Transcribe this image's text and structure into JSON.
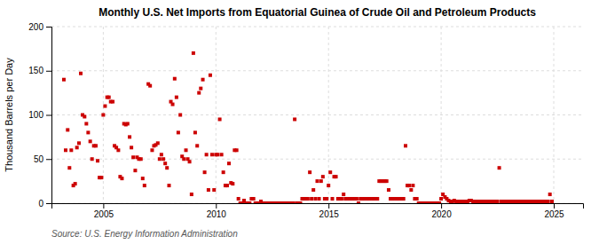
{
  "chart_data": {
    "type": "scatter",
    "title": "Monthly U.S. Net Imports from Equatorial Guinea of Crude Oil and Petroleum Products",
    "y_label": "Thousand Barrels per Day",
    "annotations": [
      "Source: U.S. Energy Information Administration"
    ],
    "color": "#cc0000",
    "marker": "square",
    "grid": true,
    "xlim": [
      2002.7,
      2026.3
    ],
    "xticks": [
      2005,
      2010,
      2015,
      2020,
      2025
    ],
    "ylim": [
      0,
      200
    ],
    "yticks": [
      0,
      50,
      100,
      150,
      200
    ],
    "x": [
      2003.25,
      2003.33,
      2003.42,
      2003.5,
      2003.58,
      2003.67,
      2003.75,
      2003.83,
      2003.92,
      2004.0,
      2004.08,
      2004.17,
      2004.25,
      2004.33,
      2004.42,
      2004.5,
      2004.58,
      2004.67,
      2004.75,
      2004.83,
      2004.92,
      2005.0,
      2005.08,
      2005.17,
      2005.25,
      2005.33,
      2005.42,
      2005.5,
      2005.58,
      2005.67,
      2005.75,
      2005.83,
      2005.92,
      2006.0,
      2006.08,
      2006.17,
      2006.25,
      2006.33,
      2006.42,
      2006.5,
      2006.58,
      2006.67,
      2006.75,
      2006.83,
      2007.0,
      2007.08,
      2007.17,
      2007.25,
      2007.33,
      2007.42,
      2007.5,
      2007.58,
      2007.67,
      2007.75,
      2007.83,
      2007.92,
      2008.0,
      2008.08,
      2008.17,
      2008.25,
      2008.33,
      2008.42,
      2008.5,
      2008.58,
      2008.67,
      2008.75,
      2008.83,
      2008.92,
      2009.0,
      2009.08,
      2009.17,
      2009.25,
      2009.33,
      2009.42,
      2009.5,
      2009.58,
      2009.67,
      2009.75,
      2009.83,
      2009.92,
      2010.0,
      2010.08,
      2010.17,
      2010.25,
      2010.33,
      2010.42,
      2010.5,
      2010.58,
      2010.67,
      2010.75,
      2010.83,
      2010.92,
      2011.0,
      2011.08,
      2011.17,
      2011.25,
      2011.33,
      2011.42,
      2011.5,
      2011.58,
      2011.67,
      2011.75,
      2011.83,
      2011.92,
      2012.0,
      2012.08,
      2012.17,
      2012.25,
      2012.33,
      2012.42,
      2012.5,
      2012.58,
      2012.67,
      2012.75,
      2012.83,
      2012.92,
      2013.0,
      2013.08,
      2013.17,
      2013.25,
      2013.33,
      2013.42,
      2013.5,
      2013.58,
      2013.67,
      2013.75,
      2013.83,
      2013.92,
      2014.0,
      2014.08,
      2014.17,
      2014.25,
      2014.33,
      2014.42,
      2014.5,
      2014.58,
      2014.67,
      2014.75,
      2014.83,
      2014.92,
      2015.0,
      2015.08,
      2015.17,
      2015.25,
      2015.33,
      2015.42,
      2015.5,
      2015.58,
      2015.67,
      2015.75,
      2015.83,
      2015.92,
      2016.0,
      2016.08,
      2016.17,
      2016.25,
      2016.33,
      2016.42,
      2016.5,
      2016.58,
      2016.67,
      2016.75,
      2016.83,
      2016.92,
      2017.0,
      2017.08,
      2017.17,
      2017.25,
      2017.33,
      2017.42,
      2017.5,
      2017.58,
      2017.67,
      2017.75,
      2017.83,
      2017.92,
      2018.0,
      2018.08,
      2018.17,
      2018.25,
      2018.33,
      2018.42,
      2018.5,
      2018.58,
      2018.67,
      2018.75,
      2018.83,
      2018.92,
      2019.0,
      2019.08,
      2019.17,
      2019.25,
      2019.33,
      2019.42,
      2019.5,
      2019.58,
      2019.67,
      2019.75,
      2019.83,
      2019.92,
      2020.0,
      2020.08,
      2020.17,
      2020.25,
      2020.33,
      2020.42,
      2020.5,
      2020.58,
      2020.67,
      2020.75,
      2020.83,
      2020.92,
      2021.0,
      2021.08,
      2021.17,
      2021.25,
      2021.33,
      2021.42,
      2021.5,
      2021.58,
      2021.67,
      2021.75,
      2021.83,
      2021.92,
      2022.0,
      2022.08,
      2022.17,
      2022.25,
      2022.33,
      2022.42,
      2022.5,
      2022.58,
      2022.67,
      2022.75,
      2022.83,
      2022.92,
      2023.0,
      2023.08,
      2023.17,
      2023.25,
      2023.33,
      2023.42,
      2023.5,
      2023.58,
      2023.67,
      2023.75,
      2023.83,
      2023.92,
      2024.0,
      2024.08,
      2024.17,
      2024.25,
      2024.33,
      2024.42,
      2024.5,
      2024.58,
      2024.67,
      2024.75,
      2024.83,
      2024.92
    ],
    "values": [
      140,
      60,
      83,
      40,
      60,
      20,
      22,
      63,
      68,
      147,
      100,
      98,
      90,
      80,
      70,
      50,
      65,
      65,
      48,
      29,
      29,
      100,
      110,
      120,
      120,
      115,
      115,
      65,
      63,
      60,
      30,
      28,
      90,
      89,
      90,
      75,
      63,
      52,
      37,
      52,
      50,
      50,
      28,
      20,
      135,
      133,
      60,
      65,
      66,
      68,
      50,
      55,
      50,
      45,
      40,
      20,
      115,
      112,
      141,
      120,
      80,
      100,
      53,
      50,
      60,
      50,
      47,
      10,
      170,
      80,
      65,
      125,
      130,
      140,
      35,
      55,
      15,
      145,
      55,
      15,
      55,
      55,
      95,
      55,
      35,
      20,
      20,
      45,
      23,
      22,
      60,
      60,
      5,
      0,
      0,
      3,
      0,
      0,
      0,
      5,
      5,
      0,
      0,
      0,
      2,
      0,
      0,
      0,
      0,
      0,
      0,
      0,
      0,
      0,
      0,
      0,
      0,
      0,
      0,
      0,
      0,
      0,
      95,
      0,
      0,
      0,
      5,
      5,
      5,
      5,
      35,
      5,
      15,
      5,
      25,
      5,
      25,
      30,
      5,
      5,
      20,
      35,
      5,
      30,
      30,
      5,
      5,
      5,
      10,
      5,
      5,
      5,
      5,
      5,
      5,
      5,
      0,
      5,
      5,
      5,
      5,
      5,
      5,
      5,
      5,
      5,
      5,
      25,
      25,
      25,
      25,
      25,
      15,
      5,
      5,
      5,
      5,
      5,
      5,
      5,
      5,
      65,
      20,
      20,
      15,
      20,
      5,
      5,
      0,
      0,
      0,
      0,
      0,
      0,
      0,
      0,
      0,
      0,
      0,
      0,
      5,
      10,
      7,
      5,
      3,
      2,
      2,
      3,
      2,
      2,
      2,
      2,
      2,
      2,
      2,
      3,
      3,
      2,
      2,
      2,
      2,
      2,
      2,
      2,
      2,
      2,
      2,
      2,
      2,
      2,
      2,
      40,
      2,
      2,
      2,
      2,
      2,
      2,
      2,
      2,
      2,
      2,
      2,
      2,
      2,
      2,
      2,
      2,
      2,
      2,
      2,
      2,
      2,
      2,
      2,
      2,
      2,
      2,
      10,
      2
    ]
  }
}
